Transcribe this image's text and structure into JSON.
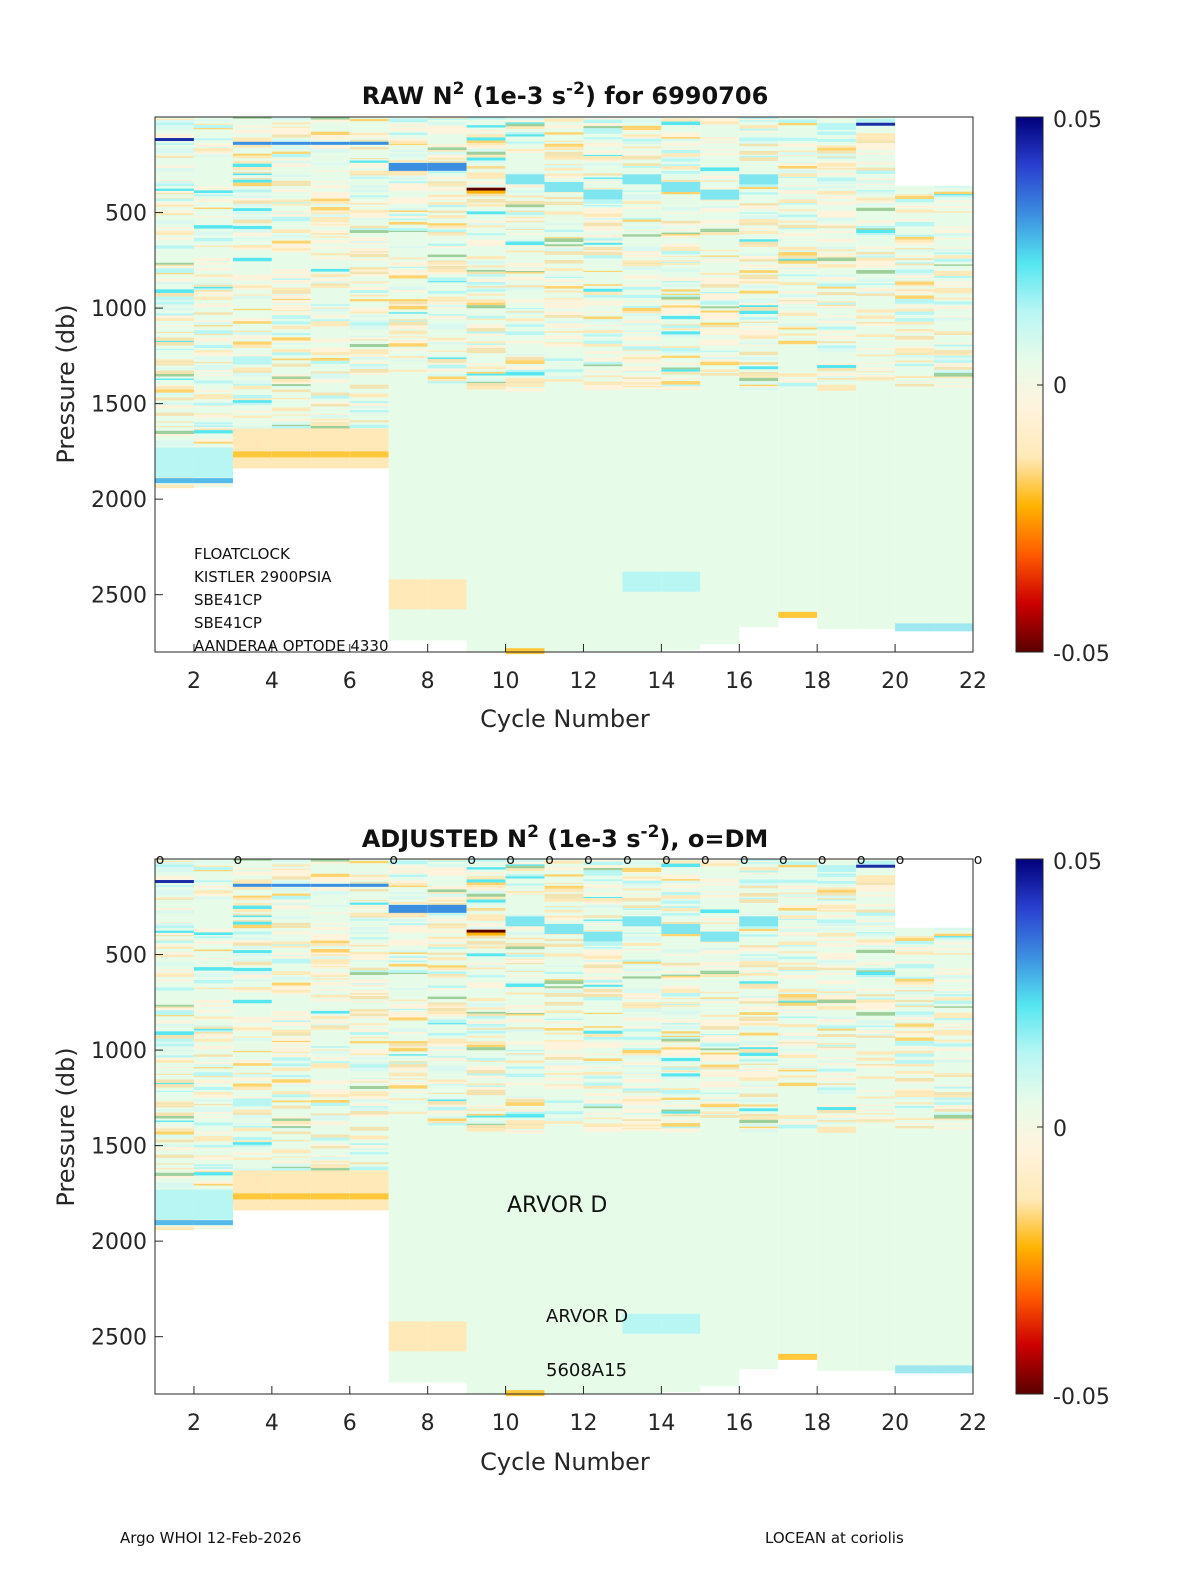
{
  "chart_data": [
    {
      "type": "heatmap",
      "title_main": "RAW N",
      "title_sup": "2",
      "title_mid": " (1e-3 s",
      "title_sup2": "-2",
      "title_end": ") for 6990706",
      "xlabel": "Cycle Number",
      "ylabel": "Pressure (db)",
      "xlim": [
        1,
        22
      ],
      "ylim": [
        0,
        2800
      ],
      "xticks": [
        "2",
        "4",
        "6",
        "8",
        "10",
        "12",
        "14",
        "16",
        "18",
        "20",
        "22"
      ],
      "yticks": [
        "500",
        "1000",
        "1500",
        "2000",
        "2500"
      ],
      "colorbar": {
        "min": "-0.05",
        "mid": "0",
        "max": "0.05"
      },
      "profile_max_pressure": [
        1940,
        1940,
        1780,
        1780,
        1780,
        1780,
        2740,
        2740,
        2800,
        2800,
        2800,
        2800,
        2800,
        2790,
        2760,
        2670,
        2600,
        2680,
        2680,
        2680,
        2680
      ],
      "instrument_info": [
        "FLOATCLOCK",
        "KISTLER 2900PSIA",
        "SBE41CP",
        "SBE41CP",
        "AANDERAA OPTODE 4330"
      ]
    },
    {
      "type": "heatmap",
      "title_main": "ADJUSTED N",
      "title_sup": "2",
      "title_mid": " (1e-3 s",
      "title_sup2": "-2",
      "title_end": "), o=DM",
      "xlabel": "Cycle Number",
      "ylabel": "Pressure (db)",
      "xlim": [
        1,
        22
      ],
      "ylim": [
        0,
        2800
      ],
      "xticks": [
        "2",
        "4",
        "6",
        "8",
        "10",
        "12",
        "14",
        "16",
        "18",
        "20",
        "22"
      ],
      "yticks": [
        "500",
        "1000",
        "1500",
        "2000",
        "2500"
      ],
      "colorbar": {
        "min": "-0.05",
        "mid": "0",
        "max": "0.05"
      },
      "dm_marker": "o",
      "dm_cycles": [
        1,
        3,
        7,
        9,
        10,
        11,
        12,
        13,
        14,
        15,
        16,
        17,
        18,
        19,
        20,
        22
      ],
      "annotations": [
        "ARVOR D",
        "ARVOR D",
        "5608A15"
      ]
    }
  ],
  "footer": {
    "left": "Argo WHOI 12-Feb-2026",
    "right": "LOCEAN at coriolis"
  },
  "colors": {
    "colormap": [
      "#5a0000",
      "#cc0000",
      "#ff5a00",
      "#ffb300",
      "#ffe9b8",
      "#fff3dc",
      "#e7fbe9",
      "#b8f6f4",
      "#55e6f0",
      "#3c8ee0",
      "#2a3fd0",
      "#00007a"
    ],
    "background_fill": "#e7fbe9"
  }
}
